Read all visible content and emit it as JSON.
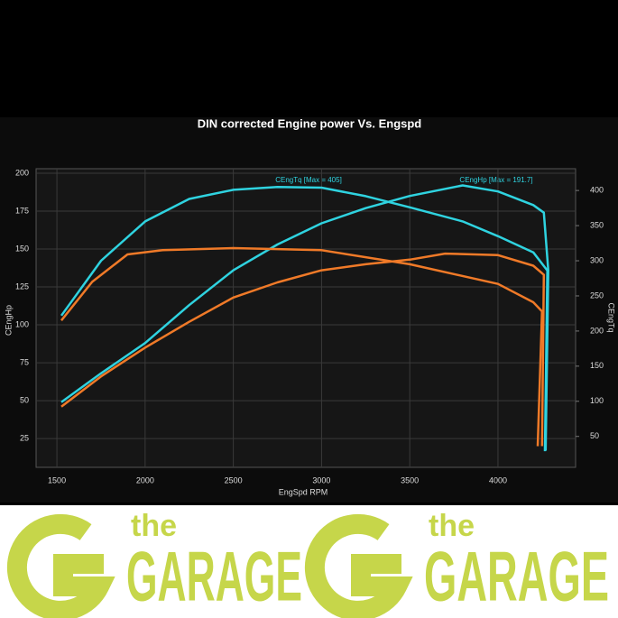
{
  "chart_data": {
    "type": "line",
    "title": "DIN corrected Engine power Vs. Engspd",
    "x_label": "EngSpd RPM",
    "y_label": "CEngHp",
    "y2_label": "CEngTq",
    "annotations": [
      "CEngTq [Max = 405]",
      "CEngHp [Max = 191.7]"
    ],
    "xlim": [
      1382,
      4440
    ],
    "xticks": [
      1500,
      2000,
      2500,
      3000,
      3500,
      4000
    ],
    "ylim": [
      6,
      203
    ],
    "yticks": [
      25,
      50,
      75,
      100,
      125,
      150,
      175,
      200
    ],
    "y2lim": [
      6,
      431
    ],
    "y2ticks": [
      50,
      100,
      150,
      200,
      250,
      300,
      350,
      400
    ],
    "grid": true,
    "series": [
      {
        "color": "#2fd3e0",
        "axis": "y2",
        "x": [
          1525,
          1750,
          2000,
          2250,
          2500,
          2750,
          3000,
          3250,
          3500,
          3800,
          4000,
          4200,
          4280,
          4266
        ],
        "values": [
          222,
          300,
          356,
          388,
          401,
          405,
          404,
          392,
          376,
          356,
          335,
          312,
          286,
          29
        ]
      },
      {
        "color": "#2fd3e0",
        "axis": "y",
        "x": [
          1525,
          1750,
          2000,
          2250,
          2500,
          2750,
          3000,
          3250,
          3500,
          3800,
          4000,
          4200,
          4260,
          4285,
          4270
        ],
        "values": [
          49,
          68,
          88,
          113,
          136,
          153,
          167,
          177,
          185,
          192,
          188,
          179,
          174,
          136,
          17
        ]
      },
      {
        "color": "#f07a28",
        "axis": "y2",
        "x": [
          1525,
          1700,
          1900,
          2100,
          2500,
          3000,
          3500,
          4000,
          4200,
          4250,
          4225
        ],
        "values": [
          215,
          270,
          309,
          315,
          318,
          315,
          295,
          267,
          241,
          228,
          36
        ]
      },
      {
        "color": "#f07a28",
        "axis": "y",
        "x": [
          1525,
          1750,
          2000,
          2250,
          2500,
          2750,
          3000,
          3250,
          3500,
          3700,
          4000,
          4200,
          4260,
          4250
        ],
        "values": [
          46,
          66,
          85,
          102,
          118,
          128,
          136,
          140,
          143,
          147,
          146,
          139,
          133,
          20
        ]
      }
    ]
  },
  "logo": {
    "small": "the",
    "big": "GARAGE"
  }
}
